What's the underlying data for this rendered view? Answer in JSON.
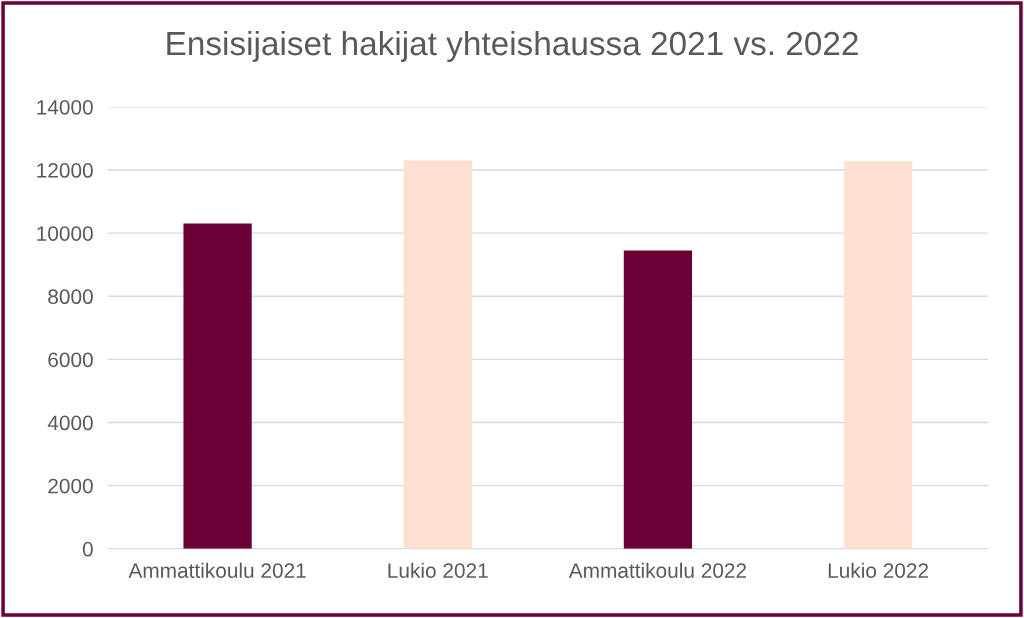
{
  "chart_data": {
    "type": "bar",
    "title": "Ensisijaiset hakijat yhteishaussa 2021 vs. 2022",
    "categories": [
      "Ammattikoulu 2021",
      "Lukio 2021",
      "Ammattikoulu 2022",
      "Lukio 2022"
    ],
    "values": [
      10310,
      12310,
      9450,
      12280
    ],
    "colors": [
      "#6b0036",
      "#fde0d0",
      "#6b0036",
      "#fde0d0"
    ],
    "ylim": [
      0,
      14000
    ],
    "yticks": [
      0,
      2000,
      4000,
      6000,
      8000,
      10000,
      12000,
      14000
    ],
    "grid": "y",
    "legend": false
  }
}
